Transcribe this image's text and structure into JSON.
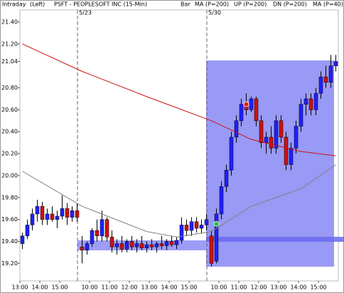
{
  "chart_data": {
    "type": "candlestick",
    "label_left": "Intraday",
    "axis_side": "(Left)",
    "title": "PSFT - PEOPLESOFT INC (15-Min)",
    "bar_label": "Bar",
    "categories": [
      "13:00",
      null,
      null,
      null,
      "14:00",
      null,
      null,
      null,
      "15:00",
      null,
      null,
      null,
      null,
      null,
      "10:00",
      null,
      null,
      null,
      "11:00",
      null,
      null,
      null,
      "12:00",
      null,
      null,
      null,
      "13:00",
      null,
      null,
      null,
      "14:00",
      null,
      null,
      null,
      "15:00",
      null,
      null,
      null,
      null,
      null,
      "10:00",
      null,
      null,
      null,
      "11:00",
      null,
      null,
      null,
      "12:00",
      null,
      null,
      null,
      "13:00",
      null,
      null,
      null,
      "14:00",
      null,
      null,
      null,
      "15:00",
      null,
      null,
      null
    ],
    "open": [
      19.38,
      19.45,
      19.55,
      19.65,
      19.72,
      19.6,
      19.65,
      19.6,
      19.63,
      19.7,
      19.62,
      19.68,
      19.35,
      19.32,
      19.38,
      19.5,
      19.45,
      19.6,
      19.44,
      19.35,
      19.38,
      19.33,
      19.4,
      19.35,
      19.38,
      19.34,
      19.37,
      19.35,
      19.38,
      19.36,
      19.4,
      19.37,
      19.41,
      19.55,
      19.5,
      19.58,
      19.52,
      19.55,
      19.45,
      19.22,
      19.65,
      19.9,
      20.05,
      20.35,
      20.5,
      20.65,
      20.6,
      20.7,
      20.5,
      20.3,
      20.35,
      20.25,
      20.5,
      20.35,
      20.1,
      20.25,
      20.45,
      20.65,
      20.7,
      20.6,
      20.75,
      20.9,
      20.85,
      21.0
    ],
    "high": [
      19.48,
      19.6,
      19.7,
      19.78,
      19.76,
      19.7,
      19.72,
      19.68,
      19.82,
      19.75,
      19.72,
      19.75,
      19.45,
      19.4,
      19.52,
      19.6,
      19.68,
      19.62,
      19.5,
      19.42,
      19.45,
      19.42,
      19.45,
      19.42,
      19.45,
      19.4,
      19.42,
      19.4,
      19.45,
      19.42,
      19.45,
      19.44,
      19.62,
      19.6,
      19.62,
      19.62,
      19.6,
      19.65,
      19.5,
      19.7,
      19.95,
      20.1,
      20.4,
      20.55,
      20.7,
      20.75,
      20.72,
      20.72,
      20.55,
      20.4,
      20.45,
      20.55,
      20.55,
      20.4,
      20.3,
      20.5,
      20.7,
      20.75,
      20.75,
      20.8,
      20.95,
      21.0,
      21.1,
      21.1
    ],
    "low": [
      19.33,
      19.42,
      19.5,
      19.58,
      19.55,
      19.55,
      19.58,
      19.52,
      19.6,
      19.55,
      19.58,
      19.58,
      19.2,
      19.28,
      19.35,
      19.4,
      19.4,
      19.4,
      19.3,
      19.28,
      19.3,
      19.3,
      19.32,
      19.3,
      19.32,
      19.3,
      19.32,
      19.3,
      19.33,
      19.32,
      19.35,
      19.33,
      19.38,
      19.45,
      19.45,
      19.48,
      19.47,
      19.5,
      19.17,
      19.2,
      19.6,
      19.85,
      20.0,
      20.3,
      20.45,
      20.55,
      20.58,
      20.45,
      20.25,
      20.2,
      20.2,
      20.2,
      20.3,
      20.05,
      20.05,
      20.2,
      20.4,
      20.55,
      20.55,
      20.55,
      20.7,
      20.8,
      20.8,
      20.95
    ],
    "close": [
      19.45,
      19.55,
      19.65,
      19.72,
      19.6,
      19.65,
      19.6,
      19.63,
      19.7,
      19.62,
      19.68,
      19.62,
      19.32,
      19.38,
      19.5,
      19.45,
      19.6,
      19.44,
      19.35,
      19.38,
      19.33,
      19.4,
      19.35,
      19.38,
      19.34,
      19.37,
      19.35,
      19.38,
      19.36,
      19.4,
      19.37,
      19.41,
      19.55,
      19.5,
      19.58,
      19.52,
      19.55,
      19.6,
      19.2,
      19.65,
      19.9,
      20.05,
      20.35,
      20.5,
      20.65,
      20.6,
      20.7,
      20.5,
      20.3,
      20.35,
      20.25,
      20.5,
      20.35,
      20.1,
      20.25,
      20.45,
      20.65,
      20.7,
      20.6,
      20.75,
      20.9,
      20.85,
      21.0,
      21.04
    ],
    "up_color": "#2020ff",
    "down_color": "#d01010",
    "lines": [
      {
        "name": "MA (P=200)",
        "color": "#d01010",
        "x": [
          0,
          12,
          25,
          38,
          46,
          56,
          63
        ],
        "values": [
          21.2,
          20.95,
          20.72,
          20.5,
          20.33,
          20.22,
          20.18
        ]
      },
      {
        "name": "MA (P=40)",
        "color": "#808080",
        "x": [
          0,
          12,
          25,
          31,
          38,
          46,
          56,
          63
        ],
        "values": [
          20.04,
          19.72,
          19.49,
          19.44,
          19.49,
          19.72,
          19.88,
          20.1
        ]
      }
    ],
    "indicators": [
      {
        "name": "UP (P=200)",
        "color": "#00a000"
      },
      {
        "name": "DN (P=200)",
        "color": "#0000a0"
      }
    ],
    "signals": [
      {
        "x": 39,
        "value": 19.56,
        "color": "#20c040"
      },
      {
        "x": 45,
        "value": 20.65,
        "color": "#e02020"
      }
    ],
    "day_labels": [
      {
        "x": 12,
        "label": "5/23"
      },
      {
        "x": 38,
        "label": "5/30"
      }
    ],
    "ylim": [
      19.04,
      21.51
    ],
    "yticks": [
      {
        "value": 19.2,
        "label": "19.20"
      },
      {
        "value": 19.4,
        "label": "19.40"
      },
      {
        "value": 19.6,
        "label": "19.60"
      },
      {
        "value": 19.8,
        "label": "19.80"
      },
      {
        "value": 20.0,
        "label": "20.00"
      },
      {
        "value": 20.2,
        "label": "20.20"
      },
      {
        "value": 20.4,
        "label": "20.40"
      },
      {
        "value": 20.6,
        "label": "20.60"
      },
      {
        "value": 20.8,
        "label": "20.80"
      },
      {
        "value": 21.2,
        "label": "21.20"
      },
      {
        "value": 21.4,
        "label": "21.40"
      }
    ],
    "last_price": {
      "value": 21.04,
      "label": "21.04"
    }
  }
}
